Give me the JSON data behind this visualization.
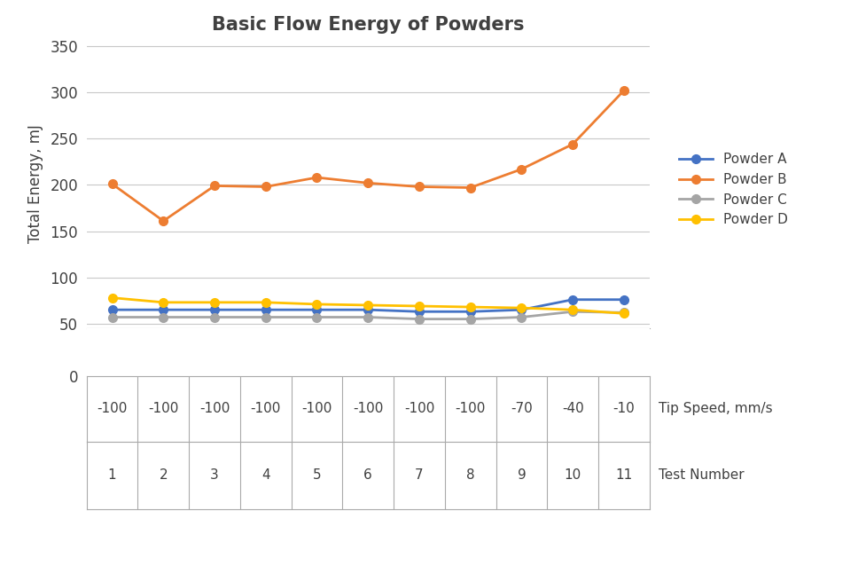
{
  "title": "Basic Flow Energy of Powders",
  "ylabel": "Total Energy, mJ",
  "xlabel_row1": "Tip Speed, mm/s",
  "xlabel_row2": "Test Number",
  "tip_speeds": [
    "-100",
    "-100",
    "-100",
    "-100",
    "-100",
    "-100",
    "-100",
    "-100",
    "-70",
    "-40",
    "-10"
  ],
  "test_numbers": [
    "1",
    "2",
    "3",
    "4",
    "5",
    "6",
    "7",
    "8",
    "9",
    "10",
    "11"
  ],
  "powder_A": [
    65,
    65,
    65,
    65,
    65,
    65,
    63,
    63,
    65,
    76,
    76
  ],
  "powder_B": [
    201,
    161,
    199,
    198,
    208,
    202,
    198,
    197,
    217,
    244,
    302
  ],
  "powder_C": [
    57,
    57,
    57,
    57,
    57,
    57,
    55,
    55,
    57,
    63,
    62
  ],
  "powder_D": [
    78,
    73,
    73,
    73,
    71,
    70,
    69,
    68,
    67,
    65,
    61
  ],
  "color_A": "#4472C4",
  "color_B": "#ED7D31",
  "color_C": "#A5A5A5",
  "color_D": "#FFC000",
  "background_color": "#FFFFFF",
  "title_fontsize": 15,
  "axis_fontsize": 12,
  "tick_fontsize": 12,
  "legend_labels": [
    "Powder A",
    "Powder B",
    "Powder C",
    "Powder D"
  ],
  "marker_size": 7,
  "line_width": 2,
  "grid_color": "#C8C8C8",
  "label_color": "#404040"
}
